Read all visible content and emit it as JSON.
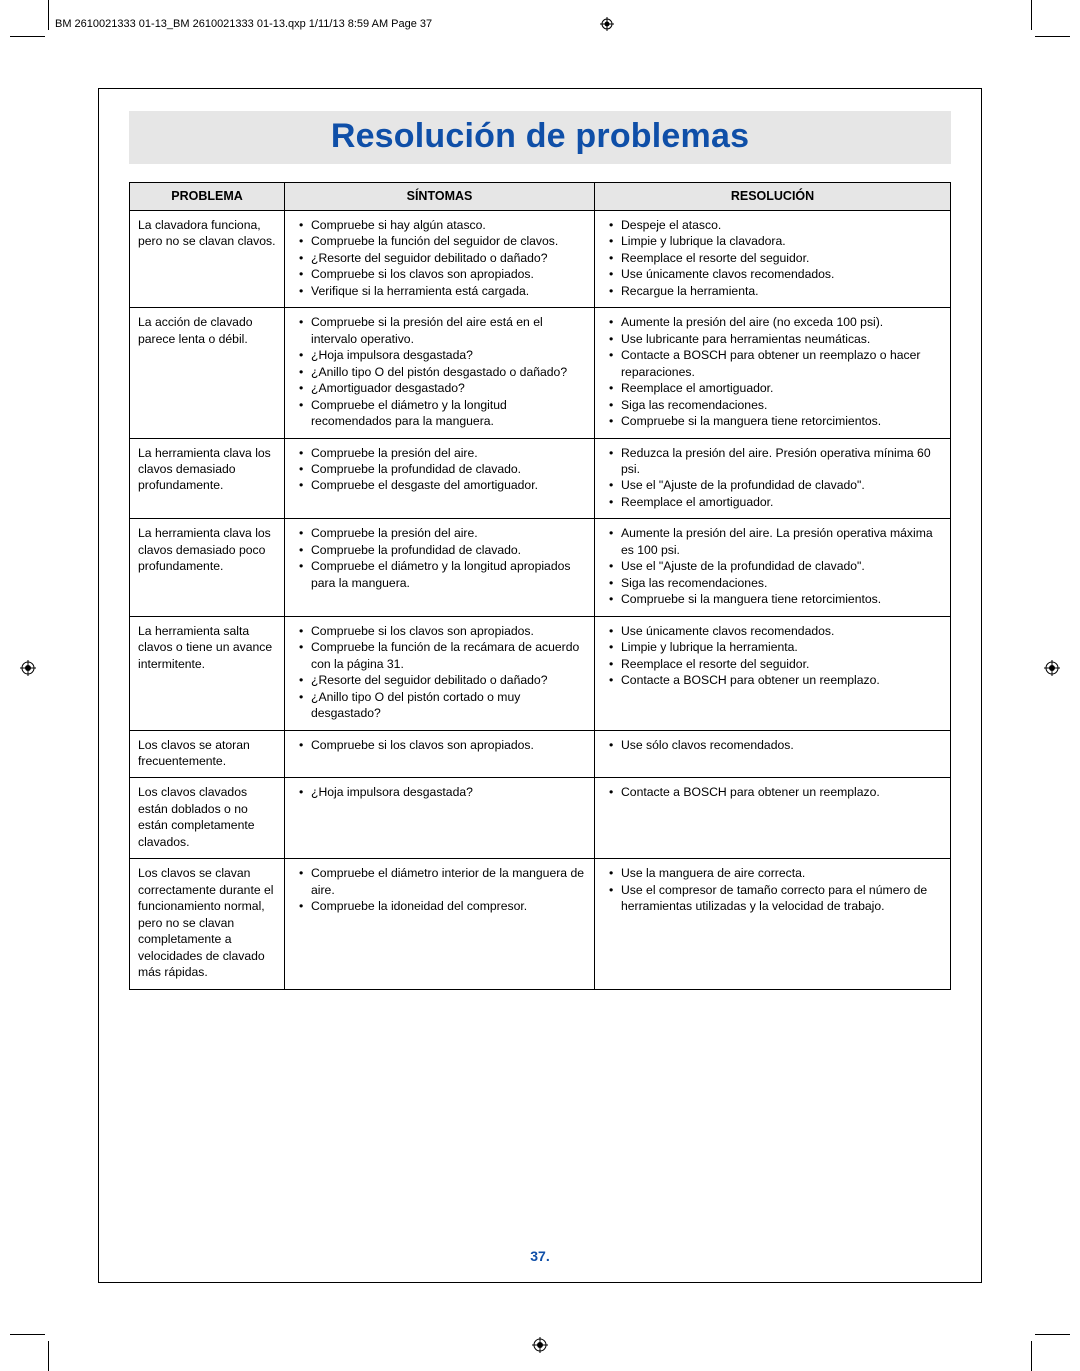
{
  "meta": {
    "header_text": "BM 2610021333 01-13_BM 2610021333 01-13.qxp  1/11/13  8:59 AM  Page 37",
    "page_number": "37.",
    "title": "Resolución de problemas",
    "title_color": "#0f4fa8",
    "title_bg": "#e6e6e6",
    "border_color": "#000000",
    "font_size_body": 12.2,
    "font_size_title": 34
  },
  "columns": {
    "problema": "PROBLEMA",
    "sintomas": "SÍNTOMAS",
    "resolucion": "RESOLUCIÓN"
  },
  "rows": [
    {
      "problema": "La clavadora funciona, pero no se clavan clavos.",
      "sintomas": [
        "Compruebe si hay algún atasco.",
        "Compruebe la función del seguidor de clavos.",
        "¿Resorte del seguidor debilitado o dañado?",
        "Compruebe si los clavos son apropiados.",
        "Verifique si la herramienta está cargada."
      ],
      "resolucion": [
        "Despeje el atasco.",
        "Limpie y lubrique la clavadora.",
        "Reemplace el resorte del seguidor.",
        "Use únicamente clavos recomendados.",
        "Recargue la herramienta."
      ]
    },
    {
      "problema": "La acción de clavado parece lenta o débil.",
      "sintomas": [
        "Compruebe si la presión del aire está en el intervalo operativo.",
        "¿Hoja impulsora desgastada?",
        "¿Anillo tipo O del pistón desgastado o dañado?",
        "¿Amortiguador desgastado?",
        "Compruebe el diámetro y la longitud recomendados para la manguera."
      ],
      "resolucion": [
        "Aumente la presión del aire (no exceda 100 psi).",
        "Use lubricante para herramientas neumáticas.",
        "Contacte a BOSCH para obtener un reemplazo o hacer reparaciones.",
        "Reemplace el amortiguador.",
        "Siga las recomendaciones.",
        "Compruebe si la manguera tiene retorcimientos."
      ]
    },
    {
      "problema": "La herramienta clava los clavos demasiado profundamente.",
      "sintomas": [
        "Compruebe la presión del aire.",
        "Compruebe la profundidad de clavado.",
        "Compruebe el desgaste del amortiguador."
      ],
      "resolucion": [
        "Reduzca la presión del aire. Presión operativa mínima 60 psi.",
        "Use el \"Ajuste de la profundidad de clavado\".",
        "Reemplace el amortiguador."
      ]
    },
    {
      "problema": "La herramienta clava los clavos demasiado poco profundamente.",
      "sintomas": [
        "Compruebe la presión del aire.",
        "Compruebe la profundidad de clavado.",
        "Compruebe el diámetro y la longitud apropiados para la manguera."
      ],
      "resolucion": [
        "Aumente la presión del aire. La presión operativa máxima es 100 psi.",
        "Use el \"Ajuste de la profundidad de clavado\".",
        "Siga las recomendaciones.",
        "Compruebe si la manguera tiene retorcimientos."
      ]
    },
    {
      "problema": "La herramienta salta clavos o tiene un avance intermitente.",
      "sintomas": [
        "Compruebe si los clavos son apropiados.",
        "Compruebe la función de la recámara de acuerdo con la página 31.",
        "¿Resorte del seguidor debilitado o dañado?",
        "¿Anillo tipo O del pistón cortado o muy desgastado?"
      ],
      "resolucion": [
        "Use únicamente clavos recomendados.",
        "Limpie y lubrique la herramienta.",
        "Reemplace el resorte del seguidor.",
        "Contacte a BOSCH para obtener un reemplazo."
      ]
    },
    {
      "problema": "Los clavos se atoran frecuentemente.",
      "sintomas": [
        "Compruebe si los clavos son apropiados."
      ],
      "resolucion": [
        "Use sólo clavos recomendados."
      ]
    },
    {
      "problema": "Los clavos clavados están doblados o no están completamente clavados.",
      "sintomas": [
        "¿Hoja impulsora desgastada?"
      ],
      "resolucion": [
        "Contacte a BOSCH para obtener un reemplazo."
      ]
    },
    {
      "problema": "Los clavos se clavan correctamente durante el funcionamiento normal, pero no se clavan completamente a velocidades de clavado más rápidas.",
      "sintomas": [
        "Compruebe el diámetro interior de la manguera de aire.",
        "Compruebe la idoneidad del compresor."
      ],
      "resolucion": [
        "Use la manguera de aire correcta.",
        "Use el compresor de tamaño correcto para el número de herramientas utilizadas y la velocidad de trabajo."
      ]
    }
  ]
}
